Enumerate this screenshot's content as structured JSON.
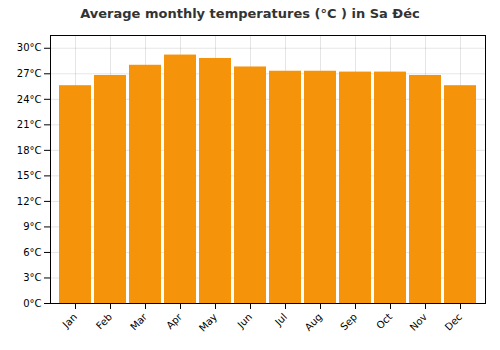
{
  "chart_data": {
    "type": "bar",
    "title": "Average monthly temperatures (°C ) in Sa Đéc",
    "categories": [
      "Jan",
      "Feb",
      "Mar",
      "Apr",
      "May",
      "Jun",
      "Jul",
      "Aug",
      "Sep",
      "Oct",
      "Nov",
      "Dec"
    ],
    "values": [
      25.6,
      26.8,
      28.0,
      29.2,
      28.8,
      27.8,
      27.3,
      27.3,
      27.2,
      27.2,
      26.8,
      25.6
    ],
    "color": "#F5930A",
    "ylim": [
      0,
      31.5
    ],
    "yticks": [
      {
        "value": 0,
        "label": "0°C"
      },
      {
        "value": 3,
        "label": "3°C"
      },
      {
        "value": 6,
        "label": "6°C"
      },
      {
        "value": 9,
        "label": "9°C"
      },
      {
        "value": 12,
        "label": "12°C"
      },
      {
        "value": 15,
        "label": "15°C"
      },
      {
        "value": 18,
        "label": "18°C"
      },
      {
        "value": 21,
        "label": "21°C"
      },
      {
        "value": 24,
        "label": "24°C"
      },
      {
        "value": 27,
        "label": "27°C"
      },
      {
        "value": 30,
        "label": "30°C"
      }
    ],
    "grid": true
  }
}
